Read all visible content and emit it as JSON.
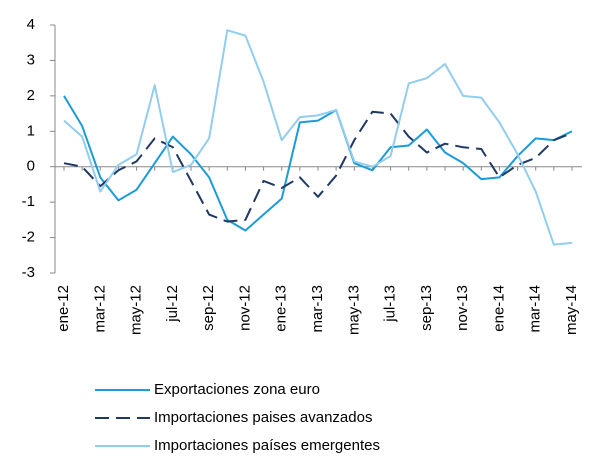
{
  "chart_data": {
    "type": "line",
    "categories": [
      "ene-12",
      null,
      "mar-12",
      null,
      "may-12",
      null,
      "jul-12",
      null,
      "sep-12",
      null,
      "nov-12",
      null,
      "ene-13",
      null,
      "mar-13",
      null,
      "may-13",
      null,
      "jul-13",
      null,
      "sep-13",
      null,
      "nov-13",
      null,
      "ene-14",
      null,
      "mar-14",
      null,
      "may-14"
    ],
    "series": [
      {
        "name": "Exportaciones zona euro",
        "color": "#1c9bd7",
        "dash": "solid",
        "values": [
          2.0,
          1.15,
          -0.3,
          -0.95,
          -0.65,
          0.1,
          0.85,
          0.35,
          -0.3,
          -1.5,
          -1.8,
          -1.35,
          -0.9,
          1.25,
          1.3,
          1.6,
          0.1,
          -0.1,
          0.55,
          0.6,
          1.05,
          0.4,
          0.1,
          -0.35,
          -0.3,
          0.3,
          0.8,
          0.75,
          1.0
        ]
      },
      {
        "name": "Importaciones paises avanzados",
        "color": "#1f3864",
        "dash": "dashed",
        "values": [
          0.1,
          0.0,
          -0.55,
          -0.1,
          0.15,
          0.8,
          0.55,
          -0.4,
          -1.35,
          -1.55,
          -1.5,
          -0.4,
          -0.6,
          -0.3,
          -0.85,
          -0.25,
          0.75,
          1.55,
          1.5,
          0.85,
          0.4,
          0.65,
          0.55,
          0.5,
          -0.3,
          0.05,
          0.25,
          0.75,
          0.95
        ]
      },
      {
        "name": "Importaciones países emergentes",
        "color": "#92cdee",
        "dash": "solid",
        "values": [
          1.3,
          0.85,
          -0.7,
          0.05,
          0.35,
          2.3,
          -0.15,
          0.05,
          0.8,
          3.85,
          3.7,
          2.4,
          0.75,
          1.4,
          1.45,
          1.6,
          0.15,
          0.0,
          0.3,
          2.35,
          2.5,
          2.9,
          2.0,
          1.95,
          1.25,
          0.35,
          -0.7,
          -2.2,
          -2.15
        ]
      }
    ],
    "ylim": [
      -3,
      4
    ],
    "yticks": [
      -3,
      -2,
      -1,
      0,
      1,
      2,
      3,
      4
    ],
    "grid": false,
    "legend": "bottom"
  }
}
